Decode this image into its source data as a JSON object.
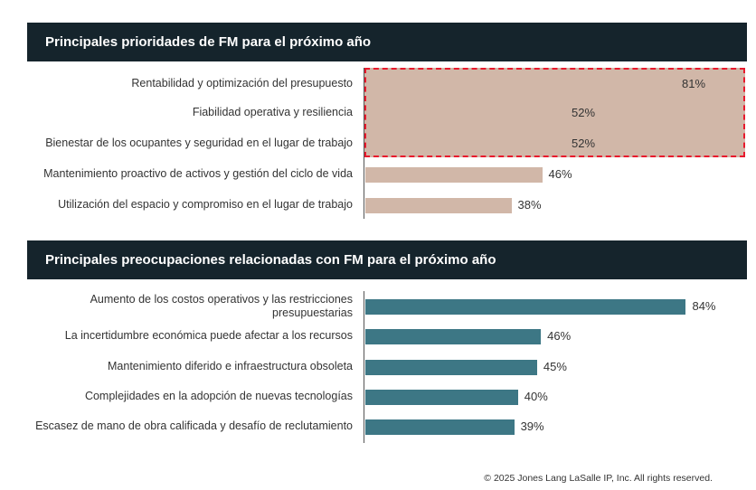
{
  "chart_data": [
    {
      "type": "bar",
      "orientation": "horizontal",
      "title": "Principales prioridades de FM para el próximo año",
      "categories": [
        "Rentabilidad y optimización del presupuesto",
        "Fiabilidad operativa y resiliencia",
        "Bienestar de los ocupantes y seguridad en el lugar de trabajo",
        "Mantenimiento proactivo de activos y gestión del ciclo de vida",
        "Utilización del espacio y compromiso en el lugar de trabajo"
      ],
      "values": [
        81,
        52,
        52,
        46,
        38
      ],
      "labels": [
        "81%",
        "52%",
        "52%",
        "46%",
        "38%"
      ],
      "highlighted": [
        0,
        1,
        2
      ],
      "color": "#d1b7a8",
      "xlim": [
        0,
        100
      ]
    },
    {
      "type": "bar",
      "orientation": "horizontal",
      "title": "Principales preocupaciones relacionadas con FM para el próximo año",
      "categories": [
        "Aumento de los costos operativos y las restricciones presupuestarias",
        "La incertidumbre económica puede afectar a los recursos",
        "Mantenimiento diferido e infraestructura obsoleta",
        "Complejidades en la adopción de nuevas tecnologías",
        "Escasez de mano de obra calificada y desafío de reclutamiento"
      ],
      "values": [
        84,
        46,
        45,
        40,
        39
      ],
      "labels": [
        "84%",
        "46%",
        "45%",
        "40%",
        "39%"
      ],
      "color": "#3d7785",
      "xlim": [
        0,
        100
      ]
    }
  ],
  "footer": "© 2025 Jones Lang LaSalle IP, Inc. All rights reserved."
}
